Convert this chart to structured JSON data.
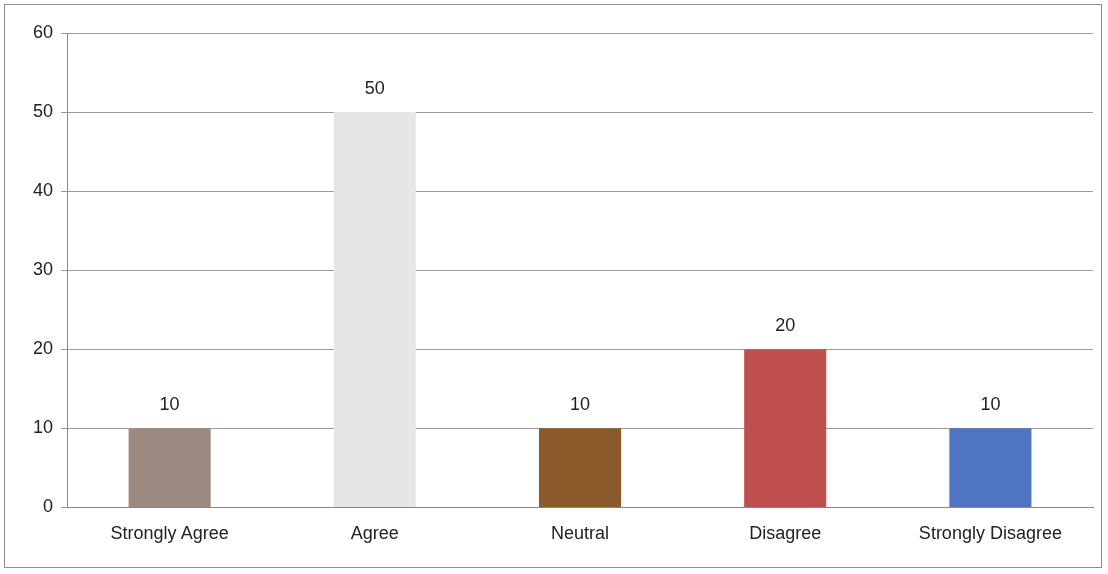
{
  "chart_data": {
    "type": "bar",
    "categories": [
      "Strongly Agree",
      "Agree",
      "Neutral",
      "Disagree",
      "Strongly Disagree"
    ],
    "values": [
      10,
      50,
      10,
      20,
      10
    ],
    "colors": [
      "#9a8a80",
      "#e6e6e6",
      "#8b5a2b",
      "#c0504d",
      "#4f74c4"
    ],
    "ylim": [
      0,
      60
    ],
    "yticks": [
      0,
      10,
      20,
      30,
      40,
      50,
      60
    ],
    "grid": "y",
    "data_labels": true,
    "legend": false
  }
}
